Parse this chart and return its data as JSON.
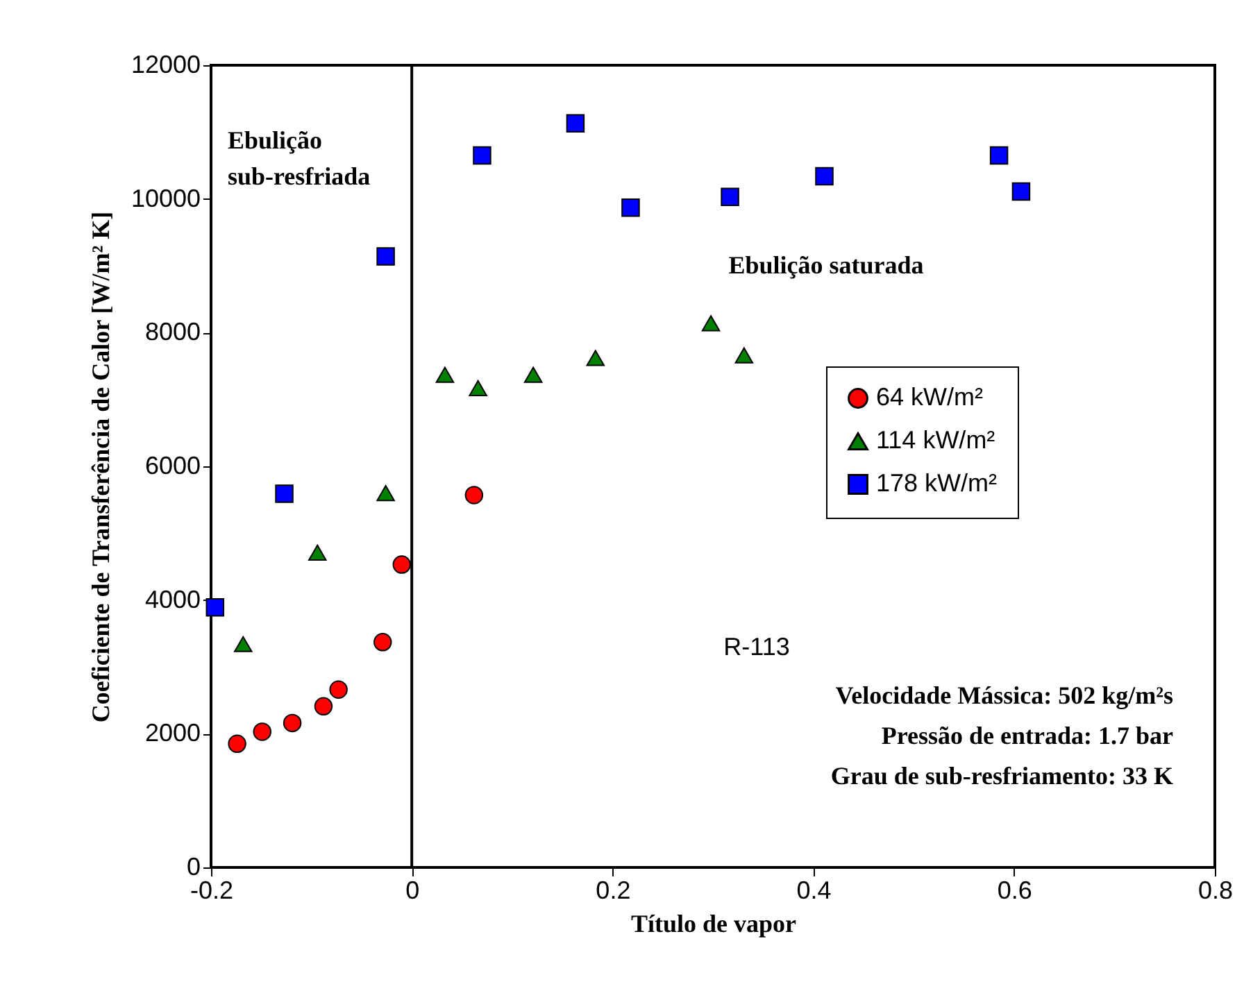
{
  "chart_data": {
    "type": "scatter",
    "xlabel": "Título de vapor",
    "ylabel": "Coeficiente de Transferência de Calor  [W/m² K]",
    "xlim": [
      -0.2,
      0.8
    ],
    "xticks": [
      -0.2,
      0,
      0.2,
      0.4,
      0.6,
      0.8
    ],
    "ylim": [
      0,
      12000
    ],
    "yticks": [
      0,
      2000,
      4000,
      6000,
      8000,
      10000,
      12000
    ],
    "grid": false,
    "legend": "right",
    "series": [
      {
        "name": "64 kW/m²",
        "color": "#ff0000",
        "marker": "circle",
        "x": [
          -0.174,
          -0.149,
          -0.119,
          -0.088,
          -0.073,
          -0.029,
          -0.01,
          0.062
        ],
        "values": [
          1850,
          2030,
          2160,
          2410,
          2660,
          3370,
          4530,
          5570
        ]
      },
      {
        "name": "114 kW/m²",
        "color": "#008000",
        "marker": "triangle",
        "x": [
          -0.168,
          -0.094,
          -0.026,
          0.033,
          0.066,
          0.121,
          0.183,
          0.298,
          0.331
        ],
        "values": [
          3340,
          4710,
          5600,
          7370,
          7170,
          7370,
          7620,
          8140,
          7660
        ]
      },
      {
        "name": "178 kW/m²",
        "color": "#0000ff",
        "marker": "square",
        "x": [
          -0.196,
          -0.127,
          -0.026,
          0.07,
          0.163,
          0.218,
          0.317,
          0.411,
          0.585,
          0.607
        ],
        "values": [
          3890,
          5590,
          9140,
          10650,
          11130,
          9870,
          10030,
          10340,
          10650,
          10110
        ]
      }
    ],
    "ref_lines": [
      {
        "axis": "x",
        "value": 0,
        "color": "#000000"
      }
    ],
    "annotations": [
      "Ebulição\nsub-resfriada",
      "Ebulição saturada",
      "R-113",
      "Velocidade Mássica: 502 kg/m²s",
      "Pressão de entrada: 1.7 bar",
      "Grau de sub-resfriamento: 33 K"
    ]
  }
}
